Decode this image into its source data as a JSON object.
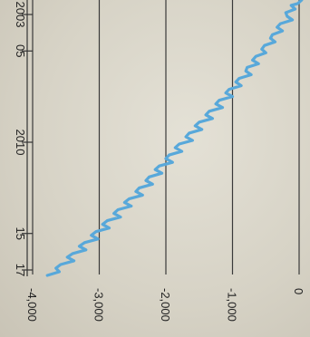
{
  "chart_data": {
    "type": "line",
    "title": "",
    "xlabel": "",
    "ylabel": "",
    "orientation": "rotated-90-clockwise",
    "x_tick_labels": [
      {
        "value": 2003,
        "label": "2003"
      },
      {
        "value": 2005,
        "label": "05"
      },
      {
        "value": 2010,
        "label": "2010"
      },
      {
        "value": 2015,
        "label": "15"
      },
      {
        "value": 2017,
        "label": "17"
      }
    ],
    "y_tick_labels": [
      {
        "value": 0,
        "label": "0"
      },
      {
        "value": -1000,
        "label": "-1,000"
      },
      {
        "value": -2000,
        "label": "-2,000"
      },
      {
        "value": -3000,
        "label": "-3,000"
      },
      {
        "value": -4000,
        "label": "-4,000"
      }
    ],
    "xlim": [
      2002,
      2018
    ],
    "ylim": [
      -4000,
      0
    ],
    "grid": true,
    "series": [
      {
        "color": "#58a8da",
        "x": [
          2002.0,
          2002.2,
          2002.4,
          2002.5,
          2002.7,
          2002.9,
          2003.1,
          2003.3,
          2003.5,
          2003.7,
          2003.9,
          2004.1,
          2004.3,
          2004.5,
          2004.7,
          2004.9,
          2005.1,
          2005.3,
          2005.5,
          2005.7,
          2005.9,
          2006.1,
          2006.3,
          2006.5,
          2006.7,
          2006.9,
          2007.1,
          2007.3,
          2007.5,
          2007.7,
          2007.9,
          2008.1,
          2008.3,
          2008.5,
          2008.7,
          2008.9,
          2009.1,
          2009.3,
          2009.5,
          2009.7,
          2009.9,
          2010.1,
          2010.3,
          2010.5,
          2010.7,
          2010.9,
          2011.1,
          2011.3,
          2011.5,
          2011.7,
          2011.9,
          2012.1,
          2012.3,
          2012.5,
          2012.7,
          2012.9,
          2013.1,
          2013.3,
          2013.5,
          2013.7,
          2013.9,
          2014.1,
          2014.3,
          2014.5,
          2014.7,
          2014.9,
          2015.1,
          2015.3,
          2015.5,
          2015.7,
          2015.9,
          2016.1,
          2016.3,
          2016.5,
          2016.7,
          2016.9,
          2017.1,
          2017.3
        ],
        "values": [
          -50,
          40,
          -20,
          -120,
          -60,
          -200,
          -180,
          -100,
          -280,
          -330,
          -250,
          -400,
          -430,
          -360,
          -520,
          -560,
          -500,
          -650,
          -700,
          -610,
          -780,
          -800,
          -720,
          -900,
          -950,
          -870,
          -1050,
          -1100,
          -1000,
          -1200,
          -1250,
          -1150,
          -1350,
          -1400,
          -1300,
          -1500,
          -1560,
          -1460,
          -1650,
          -1700,
          -1600,
          -1800,
          -1860,
          -1760,
          -1950,
          -2000,
          -1900,
          -2100,
          -2160,
          -2060,
          -2250,
          -2300,
          -2200,
          -2400,
          -2450,
          -2350,
          -2550,
          -2620,
          -2520,
          -2720,
          -2780,
          -2680,
          -2880,
          -2950,
          -2850,
          -3050,
          -3120,
          -3020,
          -3220,
          -3300,
          -3200,
          -3400,
          -3480,
          -3380,
          -3580,
          -3650,
          -3600,
          -3780
        ]
      }
    ]
  }
}
